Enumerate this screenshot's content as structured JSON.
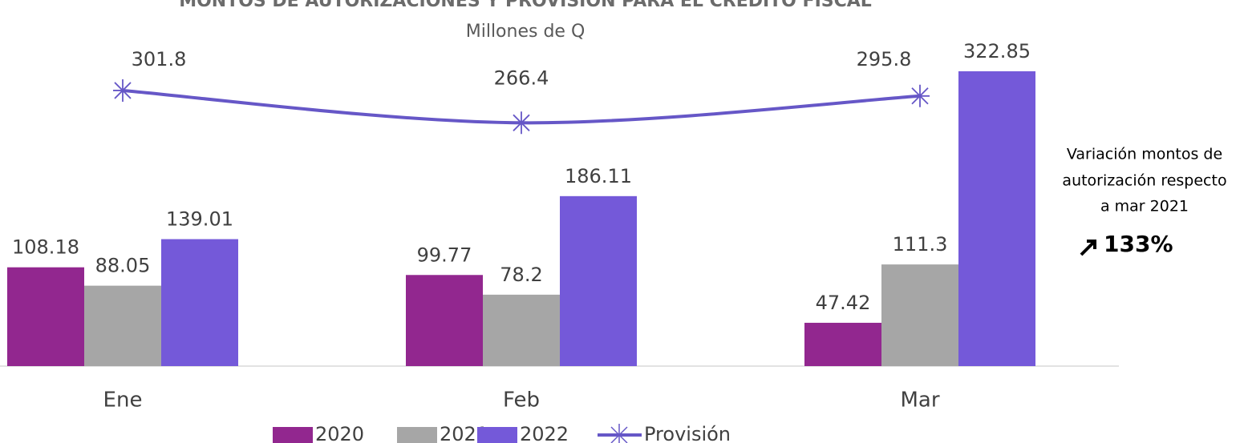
{
  "chart_data": {
    "type": "bar",
    "title": "MONTOS DE AUTORIZACIONES Y PROVISIÓN PARA EL CRÉDITO FISCAL",
    "subtitle": "Millones de Q",
    "categories": [
      "Ene",
      "Feb",
      "Mar"
    ],
    "ylim": [
      0,
      400
    ],
    "series": [
      {
        "name": "2020",
        "color": "#92278f",
        "values": [
          108.18,
          99.77,
          47.42
        ]
      },
      {
        "name": "2021",
        "color": "#a6a6a6",
        "values": [
          88.05,
          78.2,
          111.3
        ]
      },
      {
        "name": "2022",
        "color": "#7459d9",
        "values": [
          139.01,
          186.11,
          322.85
        ]
      },
      {
        "name": "Provisión",
        "type": "line",
        "color": "#6657c7",
        "values": [
          301.8,
          266.4,
          295.8
        ]
      }
    ],
    "annotation": {
      "lines": [
        "Variación montos de",
        "autorización respecto",
        "a mar 2021"
      ],
      "value": "133%"
    }
  }
}
